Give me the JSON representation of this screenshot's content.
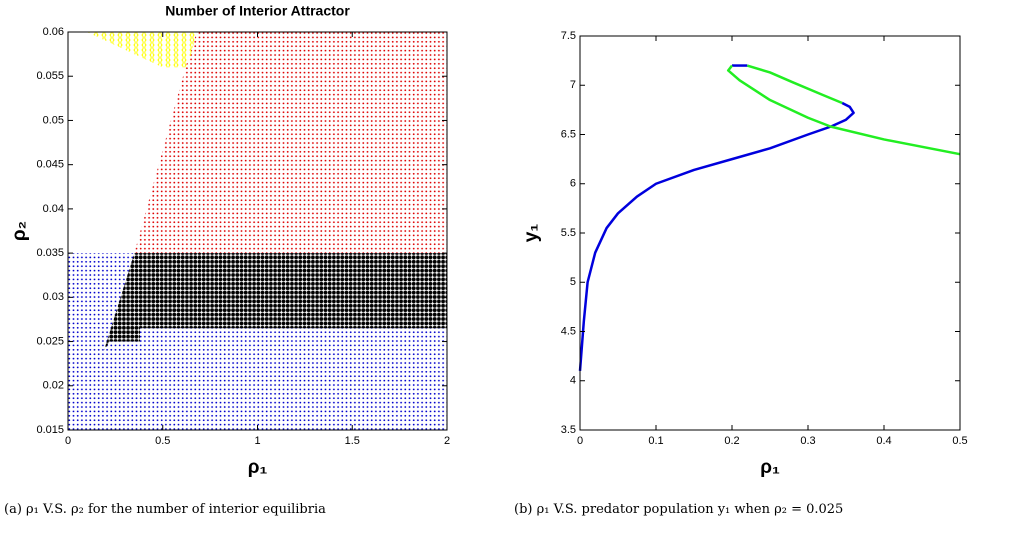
{
  "chart_data": [
    {
      "type": "area",
      "title": "Number of Interior Attractor",
      "xlabel": "ρ₁",
      "ylabel": "ρ₂",
      "caption": "(a) ρ₁ V.S. ρ₂ for the number of interior equilibria",
      "xlim": [
        0,
        2
      ],
      "ylim": [
        0.015,
        0.06
      ],
      "xticks": [
        0,
        0.5,
        1,
        1.5,
        2
      ],
      "yticks": [
        0.015,
        0.02,
        0.025,
        0.03,
        0.035,
        0.04,
        0.045,
        0.05,
        0.055,
        0.06
      ],
      "series": [
        {
          "color": "#0000cc",
          "x": [
            0,
            2,
            2,
            0
          ],
          "y": [
            0.015,
            0.015,
            0.035,
            0.035
          ]
        },
        {
          "color": "#dd0000",
          "x": [
            0.35,
            2,
            2,
            0.68,
            0.62
          ],
          "y": [
            0.035,
            0.035,
            0.06,
            0.06,
            0.056
          ]
        },
        {
          "color": "#000000",
          "x": [
            0.19,
            0.22,
            0.38,
            0.38,
            2,
            2,
            0.35
          ],
          "y": [
            0.024,
            0.025,
            0.025,
            0.0265,
            0.0265,
            0.035,
            0.035
          ]
        },
        {
          "color": "#ffff00",
          "x": [
            0.1,
            0.68,
            0.63,
            0.5
          ],
          "y": [
            0.06,
            0.06,
            0.056,
            0.056
          ]
        }
      ]
    },
    {
      "type": "line",
      "xlabel": "ρ₁",
      "ylabel": "y₁",
      "caption": "(b) ρ₁ V.S. predator population y₁ when ρ₂ = 0.025",
      "xlim": [
        0,
        0.5
      ],
      "ylim": [
        3.5,
        7.5
      ],
      "xticks": [
        0,
        0.1,
        0.2,
        0.3,
        0.4,
        0.5
      ],
      "yticks": [
        3.5,
        4,
        4.5,
        5,
        5.5,
        6,
        6.5,
        7,
        7.5
      ],
      "series": [
        {
          "color": "#0000dd",
          "x": [
            0,
            0.005,
            0.01,
            0.02,
            0.035,
            0.05,
            0.075,
            0.1,
            0.15,
            0.2,
            0.25,
            0.3,
            0.33,
            0.35,
            0.36,
            0.355,
            0.345
          ],
          "y": [
            4.1,
            4.6,
            5.0,
            5.3,
            5.55,
            5.7,
            5.87,
            6.0,
            6.14,
            6.25,
            6.36,
            6.5,
            6.58,
            6.65,
            6.72,
            6.78,
            6.82
          ]
        },
        {
          "color": "#22ee22",
          "x": [
            0.345,
            0.32,
            0.28,
            0.25,
            0.22
          ],
          "y": [
            6.82,
            6.9,
            7.03,
            7.13,
            7.2
          ]
        },
        {
          "color": "#0000dd",
          "x": [
            0.22,
            0.2
          ],
          "y": [
            7.2,
            7.2
          ]
        },
        {
          "color": "#22ee22",
          "x": [
            0.2,
            0.195,
            0.21,
            0.25,
            0.3,
            0.33,
            0.4,
            0.5
          ],
          "y": [
            7.2,
            7.15,
            7.05,
            6.85,
            6.67,
            6.58,
            6.45,
            6.3
          ]
        }
      ]
    }
  ]
}
